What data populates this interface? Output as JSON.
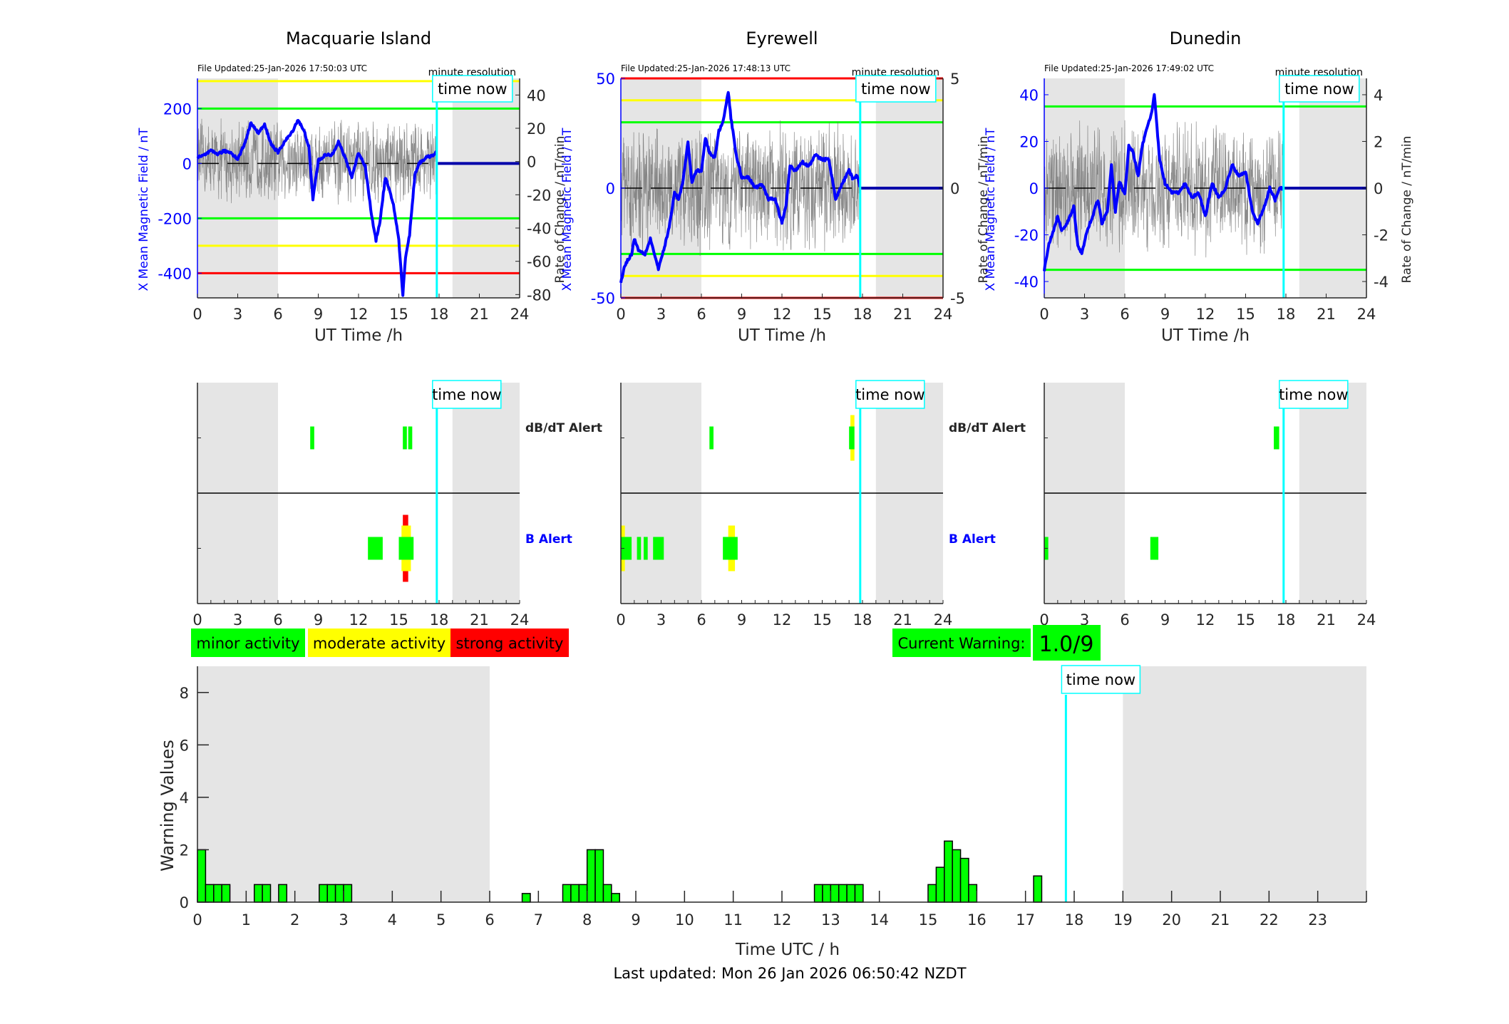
{
  "footer": {
    "last_updated": "Last updated: Mon 26 Jan 2026 06:50:42 NZDT"
  },
  "legend": [
    {
      "label": "minor activity",
      "color": "#00ff00"
    },
    {
      "label": "moderate activity",
      "color": "#ffff00"
    },
    {
      "label": "strong activity",
      "color": "#ff0000"
    }
  ],
  "current_warning": {
    "label": "Current Warning:",
    "value": "1.0/9",
    "color": "#00ff00"
  },
  "colors": {
    "field": "#0000ff",
    "rate": "#555555",
    "now_line": "#00ffff",
    "night_shade": "#e5e5e5"
  },
  "chart_data": [
    {
      "type": "line",
      "station": "Macquarie Island",
      "title": "Macquarie Island",
      "file_updated": "File Updated:25-Jan-2026 17:50:03 UTC",
      "resolution": "minute resolution",
      "now_label": "time now",
      "xlabel": "UT Time /h",
      "ylabel_left": "X Mean Magnetic Field / nT",
      "ylabel_right": "Rate of Change / nT/min",
      "xlim": [
        0,
        24
      ],
      "xticks": [
        0,
        3,
        6,
        9,
        12,
        15,
        18,
        21,
        24
      ],
      "ylim_left": [
        -490,
        310
      ],
      "yticks_left": [
        -400,
        -200,
        0,
        200
      ],
      "ylim_right": [
        -82,
        50
      ],
      "yticks_right": [
        -80,
        -60,
        -40,
        -20,
        0,
        20,
        40
      ],
      "time_now": 17.83,
      "night_shading": [
        [
          0,
          6
        ],
        [
          19,
          24
        ]
      ],
      "threshold_lines": [
        {
          "value": 300,
          "color": "#ffff00"
        },
        {
          "value": 200,
          "color": "#00ff00"
        },
        {
          "value": -200,
          "color": "#00ff00"
        },
        {
          "value": -300,
          "color": "#ffff00"
        },
        {
          "value": -400,
          "color": "#ff0000"
        }
      ],
      "field_series": {
        "x": [
          0,
          0.5,
          1,
          1.5,
          2,
          2.5,
          3,
          3.5,
          4,
          4.5,
          5,
          5.5,
          6,
          6.5,
          7,
          7.5,
          8,
          8.3,
          8.6,
          9,
          9.5,
          10,
          10.5,
          11,
          11.5,
          12,
          12.5,
          13,
          13.3,
          13.6,
          14,
          14.3,
          14.6,
          15,
          15.3,
          15.5,
          15.8,
          16.2,
          16.5,
          17,
          17.5,
          17.83
        ],
        "y": [
          20,
          30,
          45,
          35,
          45,
          40,
          15,
          70,
          150,
          110,
          140,
          70,
          40,
          80,
          110,
          160,
          110,
          60,
          -130,
          10,
          30,
          30,
          80,
          20,
          -50,
          40,
          -10,
          -200,
          -280,
          -210,
          -50,
          -100,
          -150,
          -280,
          -480,
          -340,
          -260,
          -40,
          0,
          20,
          30,
          40
        ]
      },
      "rate_series_range": [
        -20,
        35
      ]
    },
    {
      "type": "line",
      "station": "Eyrewell",
      "title": "Eyrewell",
      "file_updated": "File Updated:25-Jan-2026 17:48:13 UTC",
      "resolution": "minute resolution",
      "now_label": "time now",
      "xlabel": "UT Time /h",
      "ylabel_left": "X Mean Magnetic Field / nT",
      "ylabel_right": "Rate of Change / nT/min",
      "xlim": [
        0,
        24
      ],
      "xticks": [
        0,
        3,
        6,
        9,
        12,
        15,
        18,
        21,
        24
      ],
      "ylim_left": [
        -50,
        50
      ],
      "yticks_left": [
        -50,
        0,
        50
      ],
      "ylim_right": [
        -5,
        5
      ],
      "yticks_right": [
        -5,
        0,
        5
      ],
      "time_now": 17.83,
      "night_shading": [
        [
          0,
          6
        ],
        [
          19,
          24
        ]
      ],
      "threshold_lines": [
        {
          "value": 50,
          "color": "#ff0000"
        },
        {
          "value": 40,
          "color": "#ffff00"
        },
        {
          "value": 30,
          "color": "#00ff00"
        },
        {
          "value": -30,
          "color": "#00ff00"
        },
        {
          "value": -40,
          "color": "#ffff00"
        },
        {
          "value": -50,
          "color": "#ff0000"
        }
      ],
      "field_series": {
        "x": [
          0,
          0.3,
          0.8,
          1,
          1.3,
          1.8,
          2.2,
          2.5,
          2.8,
          3.2,
          3.6,
          4,
          4.3,
          4.6,
          5,
          5.3,
          5.6,
          6,
          6.3,
          6.6,
          7,
          7.3,
          7.6,
          8,
          8.2,
          8.6,
          9,
          9.5,
          10,
          10.5,
          11,
          11.5,
          12,
          12.3,
          12.6,
          13,
          13.5,
          14,
          14.5,
          15,
          15.5,
          16,
          16.5,
          17,
          17.3,
          17.6,
          17.83
        ],
        "y": [
          -43,
          -35,
          -30,
          -23,
          -28,
          -30,
          -23,
          -30,
          -37,
          -28,
          -18,
          -2,
          -5,
          2,
          21,
          2,
          8,
          8,
          23,
          16,
          14,
          26,
          30,
          44,
          32,
          15,
          5,
          5,
          0,
          2,
          -5,
          -5,
          -16,
          -8,
          10,
          8,
          12,
          10,
          15,
          13,
          13,
          -5,
          2,
          8,
          4,
          6,
          0
        ]
      },
      "rate_series_range": [
        -3.7,
        2.6
      ]
    },
    {
      "type": "line",
      "station": "Dunedin",
      "title": "Dunedin",
      "file_updated": "File Updated:25-Jan-2026 17:49:02 UTC",
      "resolution": "minute resolution",
      "now_label": "time now",
      "xlabel": "UT Time /h",
      "ylabel_left": "X Mean Magnetic Field / nT",
      "ylabel_right": "Rate of Change / nT/min",
      "xlim": [
        0,
        24
      ],
      "xticks": [
        0,
        3,
        6,
        9,
        12,
        15,
        18,
        21,
        24
      ],
      "ylim_left": [
        -47,
        47
      ],
      "yticks_left": [
        -40,
        -20,
        0,
        20,
        40
      ],
      "ylim_right": [
        -4.7,
        4.7
      ],
      "yticks_right": [
        -4,
        -2,
        0,
        2,
        4
      ],
      "time_now": 17.83,
      "night_shading": [
        [
          0,
          6
        ],
        [
          19,
          24
        ]
      ],
      "threshold_lines": [
        {
          "value": 35,
          "color": "#00ff00"
        },
        {
          "value": -35,
          "color": "#00ff00"
        }
      ],
      "field_series": {
        "x": [
          0,
          0.3,
          0.7,
          1,
          1.3,
          1.7,
          2.2,
          2.5,
          2.8,
          3.2,
          3.6,
          4,
          4.3,
          4.7,
          5,
          5.3,
          5.6,
          6,
          6.3,
          6.6,
          7,
          7.3,
          7.6,
          8,
          8.2,
          8.6,
          9,
          9.5,
          10,
          10.5,
          11,
          11.5,
          12,
          12.5,
          13,
          13.5,
          14,
          14.5,
          15,
          15.5,
          15.9,
          16.4,
          16.8,
          17.2,
          17.5,
          17.83
        ],
        "y": [
          -35,
          -25,
          -18,
          -12,
          -18,
          -15,
          -8,
          -25,
          -28,
          -18,
          -12,
          -5,
          -15,
          -10,
          10,
          -10,
          3,
          -3,
          18,
          16,
          5,
          18,
          25,
          32,
          40,
          12,
          2,
          -2,
          -2,
          2,
          -4,
          -2,
          -12,
          2,
          -4,
          0,
          10,
          5,
          7,
          -10,
          -15,
          -8,
          0,
          -5,
          0,
          0
        ]
      },
      "rate_series_range": [
        -3.2,
        2.8
      ]
    },
    {
      "type": "timeline",
      "panel": "alerts",
      "stations": [
        "Macquarie Island",
        "Eyrewell",
        "Dunedin"
      ],
      "row_labels": {
        "dbdt": "dB/dT Alert",
        "b": "B Alert"
      },
      "now_label": "time now",
      "xlim": [
        0,
        24
      ],
      "xticks": [
        0,
        3,
        6,
        9,
        12,
        15,
        18,
        21,
        24
      ],
      "time_now": 17.83,
      "night_shading": [
        [
          0,
          6
        ],
        [
          19,
          24
        ]
      ],
      "alerts": [
        {
          "station": "Macquarie Island",
          "dbdt": [
            {
              "start": 8.4,
              "end": 8.7,
              "level": 1
            },
            {
              "start": 15.3,
              "end": 15.6,
              "level": 1
            },
            {
              "start": 15.7,
              "end": 16.0,
              "level": 1
            }
          ],
          "b": [
            {
              "start": 12.7,
              "end": 13.8,
              "level": 1
            },
            {
              "start": 15.0,
              "end": 16.1,
              "level": 1
            },
            {
              "start": 15.2,
              "end": 15.9,
              "level": 2
            },
            {
              "start": 15.3,
              "end": 15.7,
              "level": 3
            }
          ]
        },
        {
          "station": "Eyrewell",
          "dbdt": [
            {
              "start": 6.6,
              "end": 6.9,
              "level": 1
            },
            {
              "start": 17.0,
              "end": 17.4,
              "level": 1
            },
            {
              "start": 17.1,
              "end": 17.4,
              "level": 2
            }
          ],
          "b": [
            {
              "start": 0,
              "end": 0.8,
              "level": 1
            },
            {
              "start": 0,
              "end": 0.3,
              "level": 2
            },
            {
              "start": 1.2,
              "end": 1.5,
              "level": 1
            },
            {
              "start": 1.7,
              "end": 2.0,
              "level": 1
            },
            {
              "start": 2.4,
              "end": 3.2,
              "level": 1
            },
            {
              "start": 7.6,
              "end": 8.7,
              "level": 1
            },
            {
              "start": 8.0,
              "end": 8.5,
              "level": 2
            }
          ]
        },
        {
          "station": "Dunedin",
          "dbdt": [
            {
              "start": 17.1,
              "end": 17.5,
              "level": 1
            }
          ],
          "b": [
            {
              "start": 0,
              "end": 0.3,
              "level": 1
            },
            {
              "start": 7.9,
              "end": 8.5,
              "level": 1
            }
          ]
        }
      ]
    },
    {
      "type": "bar",
      "panel": "warning_values",
      "xlabel": "Time UTC / h",
      "ylabel": "Warning Values",
      "now_label": "time now",
      "xlim": [
        0,
        24
      ],
      "ylim": [
        0,
        9
      ],
      "xticks": [
        0,
        1,
        2,
        3,
        4,
        5,
        6,
        7,
        8,
        9,
        10,
        11,
        12,
        13,
        14,
        15,
        16,
        17,
        18,
        19,
        20,
        21,
        22,
        23
      ],
      "yticks": [
        0,
        2,
        4,
        6,
        8
      ],
      "time_now": 17.83,
      "night_shading": [
        [
          0,
          6
        ],
        [
          19,
          24
        ]
      ],
      "bin_width_h": 0.1667,
      "bins": [
        {
          "start": 0.0,
          "value": 2.0
        },
        {
          "start": 0.1667,
          "value": 0.67
        },
        {
          "start": 0.3333,
          "value": 0.67
        },
        {
          "start": 0.5,
          "value": 0.67
        },
        {
          "start": 1.1667,
          "value": 0.67
        },
        {
          "start": 1.3333,
          "value": 0.67
        },
        {
          "start": 1.6667,
          "value": 0.67
        },
        {
          "start": 2.5,
          "value": 0.67
        },
        {
          "start": 2.6667,
          "value": 0.67
        },
        {
          "start": 2.8333,
          "value": 0.67
        },
        {
          "start": 3.0,
          "value": 0.67
        },
        {
          "start": 6.6667,
          "value": 0.33
        },
        {
          "start": 7.5,
          "value": 0.67
        },
        {
          "start": 7.6667,
          "value": 0.67
        },
        {
          "start": 7.8333,
          "value": 0.67
        },
        {
          "start": 8.0,
          "value": 2.0
        },
        {
          "start": 8.1667,
          "value": 2.0
        },
        {
          "start": 8.3333,
          "value": 0.67
        },
        {
          "start": 8.5,
          "value": 0.33
        },
        {
          "start": 12.6667,
          "value": 0.67
        },
        {
          "start": 12.8333,
          "value": 0.67
        },
        {
          "start": 13.0,
          "value": 0.67
        },
        {
          "start": 13.1667,
          "value": 0.67
        },
        {
          "start": 13.3333,
          "value": 0.67
        },
        {
          "start": 13.5,
          "value": 0.67
        },
        {
          "start": 15.0,
          "value": 0.67
        },
        {
          "start": 15.1667,
          "value": 1.33
        },
        {
          "start": 15.3333,
          "value": 2.33
        },
        {
          "start": 15.5,
          "value": 2.0
        },
        {
          "start": 15.6667,
          "value": 1.67
        },
        {
          "start": 15.8333,
          "value": 0.67
        },
        {
          "start": 17.1667,
          "value": 1.0
        }
      ]
    }
  ]
}
